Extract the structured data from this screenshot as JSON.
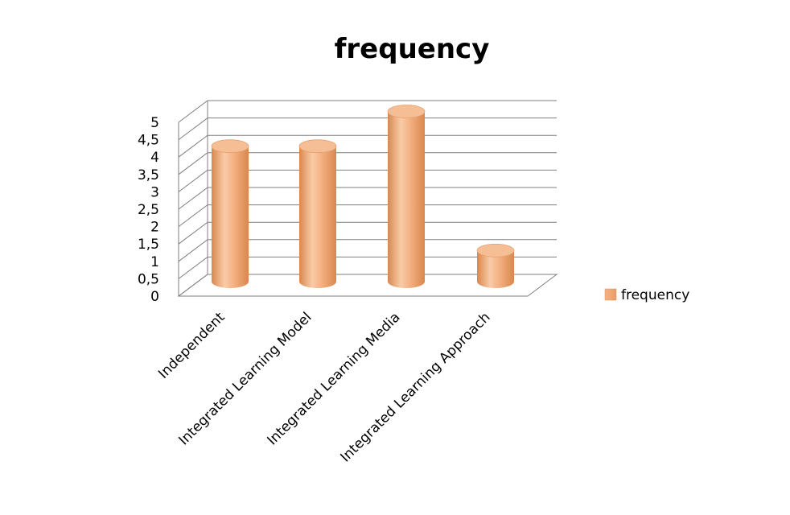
{
  "chart_data": {
    "type": "bar",
    "title": "frequency",
    "categories": [
      "Independent",
      "Integrated Learning Model",
      "Integrated Learning Media",
      "Integrated Learning Approach"
    ],
    "series": [
      {
        "name": "frequency",
        "values": [
          4,
          4,
          5,
          1
        ],
        "color": "#F4B183"
      }
    ],
    "ylim": [
      0,
      5
    ],
    "yticks": [
      "0",
      "0,5",
      "1",
      "1,5",
      "2",
      "2,5",
      "3",
      "3,5",
      "4",
      "4,5",
      "5"
    ],
    "ytick_values": [
      0,
      0.5,
      1,
      1.5,
      2,
      2.5,
      3,
      3.5,
      4,
      4.5,
      5
    ],
    "grid": true,
    "legend": "right",
    "style": "3d-cylinder"
  }
}
